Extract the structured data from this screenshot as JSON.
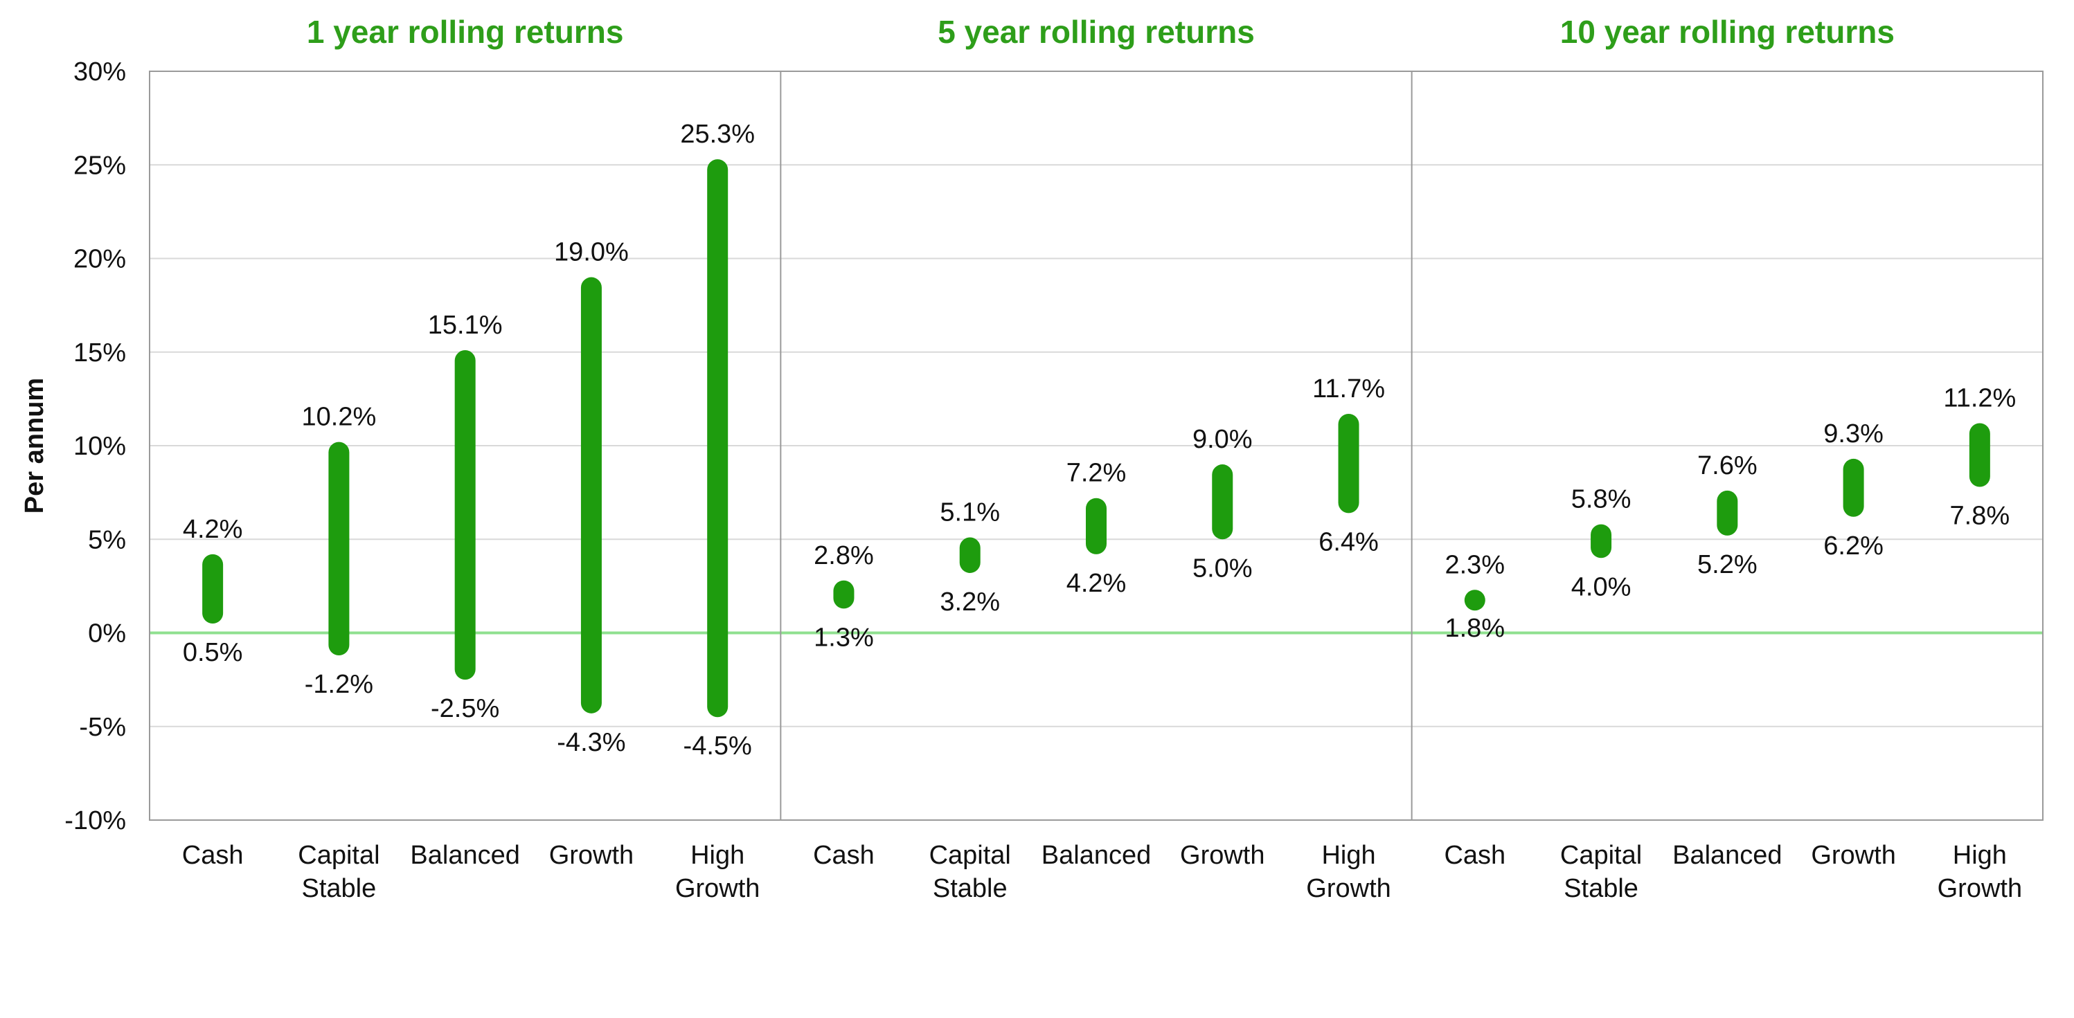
{
  "chart_data": {
    "type": "range-bar",
    "ylabel": "Per annum",
    "ylim": [
      -10,
      30
    ],
    "yticks": [
      -10,
      -5,
      0,
      5,
      10,
      15,
      20,
      25,
      30
    ],
    "ytick_labels": [
      "-10%",
      "-5%",
      "0%",
      "5%",
      "10%",
      "15%",
      "20%",
      "25%",
      "30%"
    ],
    "grid": true,
    "colors": {
      "bar": "#1e9c0e",
      "title": "#2e9e1a",
      "zero_line": "#8fe08f",
      "grid": "#d9d9d9",
      "frame": "#9a9a9a"
    },
    "panels": [
      {
        "title": "1 year rolling returns",
        "categories": [
          {
            "lines": [
              "Cash"
            ],
            "low": 0.5,
            "high": 4.2,
            "low_label": "0.5%",
            "high_label": "4.2%"
          },
          {
            "lines": [
              "Capital",
              "Stable"
            ],
            "low": -1.2,
            "high": 10.2,
            "low_label": "-1.2%",
            "high_label": "10.2%"
          },
          {
            "lines": [
              "Balanced"
            ],
            "low": -2.5,
            "high": 15.1,
            "low_label": "-2.5%",
            "high_label": "15.1%"
          },
          {
            "lines": [
              "Growth"
            ],
            "low": -4.3,
            "high": 19.0,
            "low_label": "-4.3%",
            "high_label": "19.0%"
          },
          {
            "lines": [
              "High",
              "Growth"
            ],
            "low": -4.5,
            "high": 25.3,
            "low_label": "-4.5%",
            "high_label": "25.3%"
          }
        ]
      },
      {
        "title": "5 year rolling returns",
        "categories": [
          {
            "lines": [
              "Cash"
            ],
            "low": 1.3,
            "high": 2.8,
            "low_label": "1.3%",
            "high_label": "2.8%"
          },
          {
            "lines": [
              "Capital",
              "Stable"
            ],
            "low": 3.2,
            "high": 5.1,
            "low_label": "3.2%",
            "high_label": "5.1%"
          },
          {
            "lines": [
              "Balanced"
            ],
            "low": 4.2,
            "high": 7.2,
            "low_label": "4.2%",
            "high_label": "7.2%"
          },
          {
            "lines": [
              "Growth"
            ],
            "low": 5.0,
            "high": 9.0,
            "low_label": "5.0%",
            "high_label": "9.0%"
          },
          {
            "lines": [
              "High",
              "Growth"
            ],
            "low": 6.4,
            "high": 11.7,
            "low_label": "6.4%",
            "high_label": "11.7%"
          }
        ]
      },
      {
        "title": "10 year rolling returns",
        "categories": [
          {
            "lines": [
              "Cash"
            ],
            "low": 1.8,
            "high": 2.3,
            "low_label": "1.8%",
            "high_label": "2.3%"
          },
          {
            "lines": [
              "Capital",
              "Stable"
            ],
            "low": 4.0,
            "high": 5.8,
            "low_label": "4.0%",
            "high_label": "5.8%"
          },
          {
            "lines": [
              "Balanced"
            ],
            "low": 5.2,
            "high": 7.6,
            "low_label": "5.2%",
            "high_label": "7.6%"
          },
          {
            "lines": [
              "Growth"
            ],
            "low": 6.2,
            "high": 9.3,
            "low_label": "6.2%",
            "high_label": "9.3%"
          },
          {
            "lines": [
              "High",
              "Growth"
            ],
            "low": 7.8,
            "high": 11.2,
            "low_label": "7.8%",
            "high_label": "11.2%"
          }
        ]
      }
    ]
  }
}
